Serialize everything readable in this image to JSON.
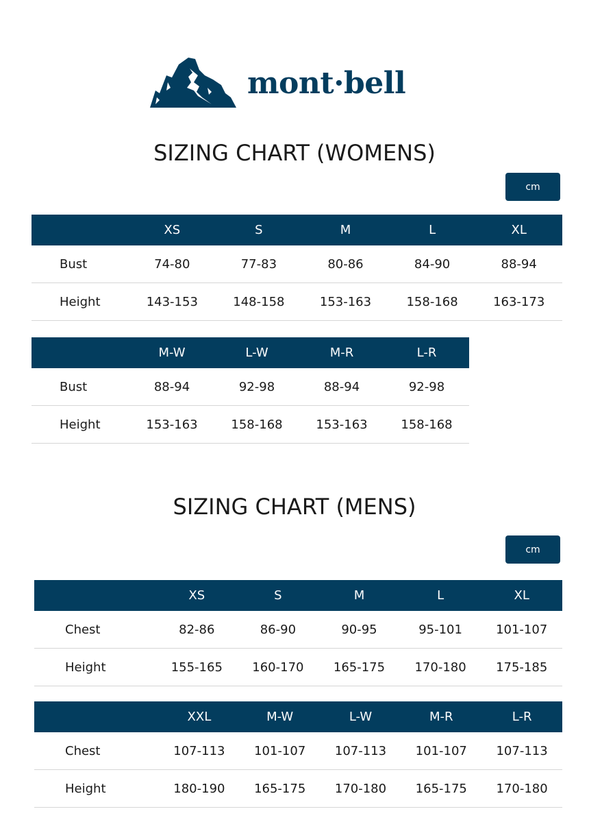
{
  "brand": {
    "name": "mont·bell",
    "color": "#033d5e"
  },
  "womens": {
    "title": "SIZING CHART (WOMENS)",
    "unit": "cm",
    "tables": [
      {
        "headers": [
          "",
          "XS",
          "S",
          "M",
          "L",
          "XL"
        ],
        "rows": [
          [
            "Bust",
            "74-80",
            "77-83",
            "80-86",
            "84-90",
            "88-94"
          ],
          [
            "Height",
            "143-153",
            "148-158",
            "153-163",
            "158-168",
            "163-173"
          ]
        ]
      },
      {
        "headers": [
          "",
          "M-W",
          "L-W",
          "M-R",
          "L-R"
        ],
        "rows": [
          [
            "Bust",
            "88-94",
            "92-98",
            "88-94",
            "92-98"
          ],
          [
            "Height",
            "153-163",
            "158-168",
            "153-163",
            "158-168"
          ]
        ]
      }
    ]
  },
  "mens": {
    "title": "SIZING CHART (MENS)",
    "unit": "cm",
    "tables": [
      {
        "headers": [
          "",
          "XS",
          "S",
          "M",
          "L",
          "XL"
        ],
        "rows": [
          [
            "Chest",
            "82-86",
            "86-90",
            "90-95",
            "95-101",
            "101-107"
          ],
          [
            "Height",
            "155-165",
            "160-170",
            "165-175",
            "170-180",
            "175-185"
          ]
        ]
      },
      {
        "headers": [
          "",
          "XXL",
          "M-W",
          "L-W",
          "M-R",
          "L-R"
        ],
        "rows": [
          [
            "Chest",
            "107-113",
            "101-107",
            "107-113",
            "101-107",
            "107-113"
          ],
          [
            "Height",
            "180-190",
            "165-175",
            "170-180",
            "165-175",
            "170-180"
          ]
        ]
      }
    ]
  }
}
